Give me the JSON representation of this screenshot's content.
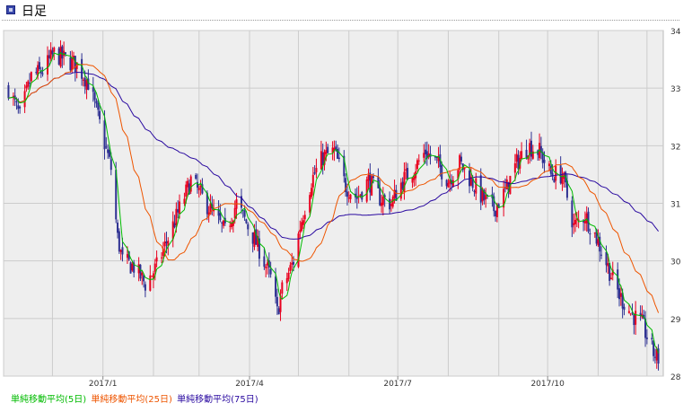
{
  "header": {
    "title": "日足"
  },
  "legend": {
    "ma5": "単純移動平均(5日)",
    "ma25": "単純移動平均(25日)",
    "ma75": "単純移動平均(75日)"
  },
  "colors": {
    "plot_bg": "#eeeeee",
    "grid": "#cccccc",
    "candle_up": "#e8001e",
    "candle_down": "#2e3192",
    "ma5": "#00bb00",
    "ma25": "#ee5500",
    "ma75": "#2a0aa0"
  },
  "chart_data": {
    "type": "candlestick",
    "title": "日足",
    "x_labels": [
      "2017/1",
      "2017/4",
      "2017/7",
      "2017/10"
    ],
    "y_ticks": [
      28,
      29,
      30,
      31,
      32,
      33,
      34
    ],
    "ylim": [
      28,
      34
    ],
    "x_range": [
      "2016/11",
      "2017/12"
    ],
    "grid": true,
    "series_close_anchors": [
      [
        "2016/11/04",
        33.0
      ],
      [
        "2016/11/11",
        32.5
      ],
      [
        "2016/11/18",
        33.2
      ],
      [
        "2016/11/25",
        33.3
      ],
      [
        "2016/12/02",
        33.6
      ],
      [
        "2016/12/09",
        33.5
      ],
      [
        "2016/12/16",
        33.4
      ],
      [
        "2016/12/23",
        33.1
      ],
      [
        "2016/12/28",
        32.6
      ],
      [
        "2017/01/06",
        31.6
      ],
      [
        "2017/01/10",
        30.4
      ],
      [
        "2017/01/13",
        30.0
      ],
      [
        "2017/01/20",
        29.9
      ],
      [
        "2017/01/27",
        29.6
      ],
      [
        "2017/02/03",
        29.9
      ],
      [
        "2017/02/10",
        30.4
      ],
      [
        "2017/02/17",
        30.9
      ],
      [
        "2017/02/24",
        31.4
      ],
      [
        "2017/03/03",
        31.1
      ],
      [
        "2017/03/10",
        30.8
      ],
      [
        "2017/03/17",
        30.5
      ],
      [
        "2017/03/24",
        31.0
      ],
      [
        "2017/03/31",
        30.6
      ],
      [
        "2017/04/07",
        30.2
      ],
      [
        "2017/04/14",
        29.7
      ],
      [
        "2017/04/18",
        29.1
      ],
      [
        "2017/04/21",
        29.5
      ],
      [
        "2017/04/28",
        30.0
      ],
      [
        "2017/05/02",
        30.6
      ],
      [
        "2017/05/09",
        31.4
      ],
      [
        "2017/05/16",
        31.8
      ],
      [
        "2017/05/23",
        31.9
      ],
      [
        "2017/05/30",
        31.3
      ],
      [
        "2017/06/06",
        31.1
      ],
      [
        "2017/06/13",
        31.4
      ],
      [
        "2017/06/20",
        31.1
      ],
      [
        "2017/06/27",
        31.0
      ],
      [
        "2017/07/04",
        31.4
      ],
      [
        "2017/07/11",
        31.6
      ],
      [
        "2017/07/18",
        31.9
      ],
      [
        "2017/07/25",
        31.7
      ],
      [
        "2017/08/01",
        31.4
      ],
      [
        "2017/08/08",
        31.7
      ],
      [
        "2017/08/15",
        31.4
      ],
      [
        "2017/08/22",
        31.1
      ],
      [
        "2017/08/29",
        30.9
      ],
      [
        "2017/09/05",
        31.2
      ],
      [
        "2017/09/12",
        31.7
      ],
      [
        "2017/09/19",
        32.0
      ],
      [
        "2017/09/26",
        31.9
      ],
      [
        "2017/10/03",
        31.5
      ],
      [
        "2017/10/10",
        31.5
      ],
      [
        "2017/10/17",
        30.6
      ],
      [
        "2017/10/24",
        30.8
      ],
      [
        "2017/10/31",
        30.4
      ],
      [
        "2017/11/07",
        29.9
      ],
      [
        "2017/11/14",
        29.4
      ],
      [
        "2017/11/21",
        29.1
      ],
      [
        "2017/11/28",
        28.9
      ],
      [
        "2017/12/05",
        28.4
      ],
      [
        "2017/12/08",
        28.3
      ]
    ]
  }
}
